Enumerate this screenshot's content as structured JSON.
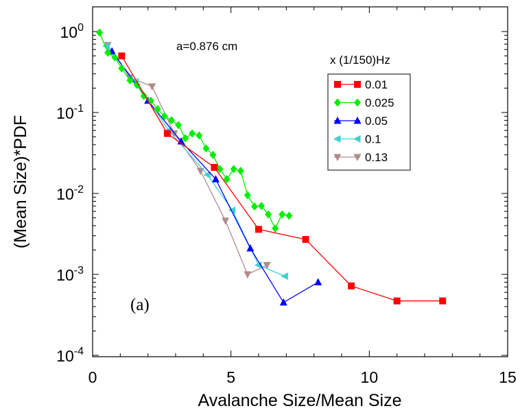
{
  "chart_data": {
    "type": "line",
    "title": "",
    "xlabel": "Avalanche Size/Mean Size",
    "ylabel": "(Mean Size)*PDF",
    "xlim": [
      0,
      15
    ],
    "ylim": [
      0.0001,
      1.5
    ],
    "yscale": "log",
    "grid": false,
    "x_ticks": [
      0,
      5,
      10,
      15
    ],
    "x_tick_labels": [
      "0",
      "5",
      "10",
      "15"
    ],
    "y_ticks": [
      1,
      0.1,
      0.01,
      0.001,
      0.0001
    ],
    "y_tick_labels": [
      {
        "base": "10",
        "exp": "0"
      },
      {
        "base": "10",
        "exp": "-1"
      },
      {
        "base": "10",
        "exp": "-2"
      },
      {
        "base": "10",
        "exp": "-3"
      },
      {
        "base": "10",
        "exp": "-4"
      }
    ],
    "legend_title": "x (1/150)Hz",
    "legend_position": "top-right",
    "annotations": [
      {
        "text": "a=0.876 cm"
      },
      {
        "text": "(a)"
      }
    ],
    "series": [
      {
        "name": "0.01",
        "color": "#ff0000",
        "marker": "square",
        "x": [
          1.05,
          2.7,
          4.4,
          6.0,
          7.7,
          9.35,
          11.0,
          12.65
        ],
        "y": [
          0.5,
          0.055,
          0.021,
          0.0036,
          0.0027,
          0.00072,
          0.00047,
          0.00047
        ]
      },
      {
        "name": "0.025",
        "color": "#00ee00",
        "marker": "diamond",
        "x": [
          0.25,
          0.55,
          0.8,
          1.05,
          1.35,
          1.6,
          1.85,
          2.1,
          2.35,
          2.6,
          2.85,
          3.1,
          3.35,
          3.6,
          3.85,
          4.1,
          4.35,
          4.6,
          4.85,
          5.1,
          5.35,
          5.6,
          5.85,
          6.1,
          6.35,
          6.6,
          6.85,
          7.1
        ],
        "y": [
          0.97,
          0.55,
          0.48,
          0.35,
          0.25,
          0.22,
          0.16,
          0.14,
          0.11,
          0.09,
          0.08,
          0.07,
          0.048,
          0.055,
          0.052,
          0.036,
          0.03,
          0.02,
          0.015,
          0.02,
          0.019,
          0.0095,
          0.0069,
          0.007,
          0.0055,
          0.0037,
          0.0055,
          0.0053
        ]
      },
      {
        "name": "0.05",
        "color": "#0000ff",
        "marker": "triangle-up",
        "x": [
          0.7,
          2.0,
          3.2,
          4.45,
          5.7,
          6.9,
          8.15
        ],
        "y": [
          0.57,
          0.14,
          0.044,
          0.015,
          0.0021,
          0.00045,
          0.0008
        ]
      },
      {
        "name": "0.1",
        "color": "#40d0d0",
        "marker": "triangle-left",
        "x": [
          0.5,
          1.55,
          2.75,
          4.15,
          5.05,
          6.0,
          6.95
        ],
        "y": [
          0.66,
          0.24,
          0.06,
          0.017,
          0.0062,
          0.0013,
          0.00095
        ]
      },
      {
        "name": "0.13",
        "color": "#b08c8c",
        "marker": "triangle-down",
        "x": [
          0.55,
          1.35,
          2.15,
          2.95,
          3.9,
          4.8,
          5.6,
          6.3
        ],
        "y": [
          0.68,
          0.27,
          0.21,
          0.055,
          0.019,
          0.0046,
          0.001,
          0.0013
        ]
      }
    ]
  }
}
